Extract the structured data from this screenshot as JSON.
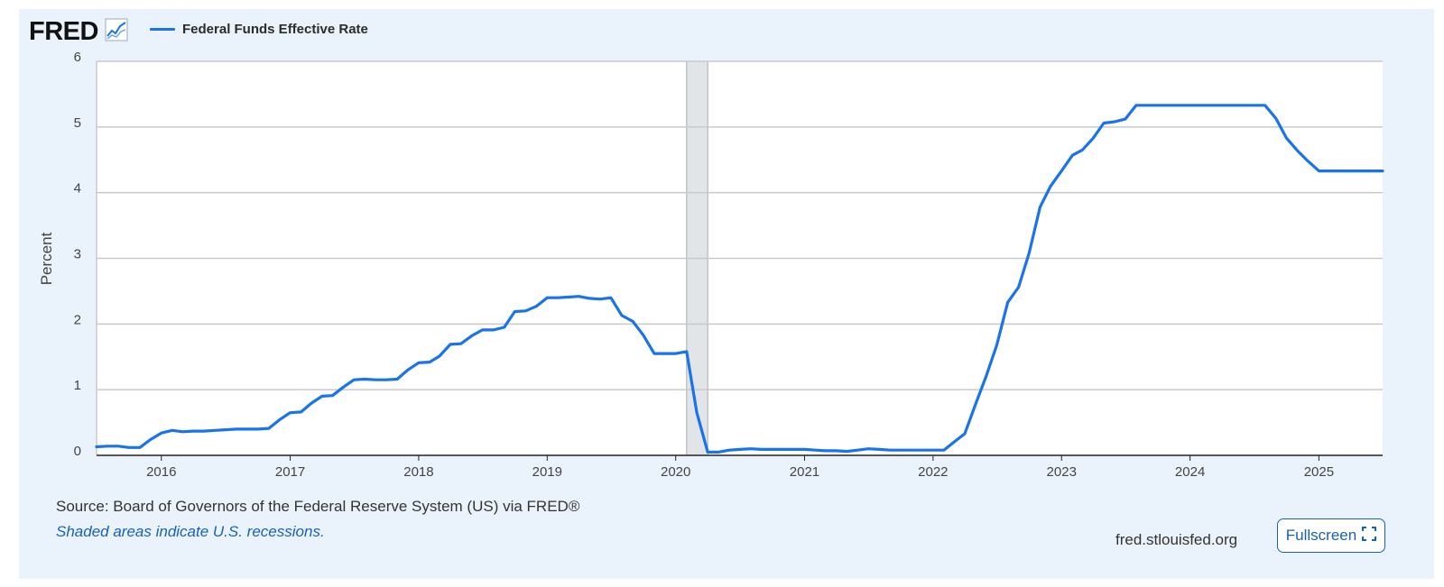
{
  "header": {
    "logo_text": "FRED",
    "logo_icon": "line-graph-icon",
    "legend_label": "Federal Funds Effective Rate",
    "legend_color": "#1a73e8"
  },
  "footer": {
    "source": "Source: Board of Governors of the Federal Reserve System (US) via FRED®",
    "recession_note": "Shaded areas indicate U.S. recessions.",
    "site": "fred.stlouisfed.org",
    "fullscreen_label": "Fullscreen",
    "fullscreen_icon": "expand-icon"
  },
  "chart_data": {
    "type": "line",
    "title": "",
    "xlabel": "",
    "ylabel": "Percent",
    "ylim": [
      0,
      6
    ],
    "xlim": [
      "2015-07-01",
      "2025-07-01"
    ],
    "yticks": [
      "0",
      "1",
      "2",
      "3",
      "4",
      "5",
      "6"
    ],
    "xticks": [
      {
        "date": "2016-01-01",
        "label": "2016"
      },
      {
        "date": "2017-01-01",
        "label": "2017"
      },
      {
        "date": "2018-01-01",
        "label": "2018"
      },
      {
        "date": "2019-01-01",
        "label": "2019"
      },
      {
        "date": "2020-01-01",
        "label": "2020"
      },
      {
        "date": "2021-01-01",
        "label": "2021"
      },
      {
        "date": "2022-01-01",
        "label": "2022"
      },
      {
        "date": "2023-01-01",
        "label": "2023"
      },
      {
        "date": "2024-01-01",
        "label": "2024"
      },
      {
        "date": "2025-01-01",
        "label": "2025"
      }
    ],
    "grid": true,
    "recessions": [
      {
        "start": "2020-02-01",
        "end": "2020-04-01"
      }
    ],
    "series": [
      {
        "name": "Federal Funds Effective Rate",
        "color": "#1a73e8",
        "x": [
          "2015-07-01",
          "2015-08-01",
          "2015-09-01",
          "2015-10-01",
          "2015-11-01",
          "2015-12-01",
          "2016-01-01",
          "2016-02-01",
          "2016-03-01",
          "2016-04-01",
          "2016-05-01",
          "2016-06-01",
          "2016-07-01",
          "2016-08-01",
          "2016-09-01",
          "2016-10-01",
          "2016-11-01",
          "2016-12-01",
          "2017-01-01",
          "2017-02-01",
          "2017-03-01",
          "2017-04-01",
          "2017-05-01",
          "2017-06-01",
          "2017-07-01",
          "2017-08-01",
          "2017-09-01",
          "2017-10-01",
          "2017-11-01",
          "2017-12-01",
          "2018-01-01",
          "2018-02-01",
          "2018-03-01",
          "2018-04-01",
          "2018-05-01",
          "2018-06-01",
          "2018-07-01",
          "2018-08-01",
          "2018-09-01",
          "2018-10-01",
          "2018-11-01",
          "2018-12-01",
          "2019-01-01",
          "2019-02-01",
          "2019-03-01",
          "2019-04-01",
          "2019-05-01",
          "2019-06-01",
          "2019-07-01",
          "2019-08-01",
          "2019-09-01",
          "2019-10-01",
          "2019-11-01",
          "2019-12-01",
          "2020-01-01",
          "2020-02-01",
          "2020-03-01",
          "2020-04-01",
          "2020-05-01",
          "2020-06-01",
          "2020-07-01",
          "2020-08-01",
          "2020-09-01",
          "2020-10-01",
          "2020-11-01",
          "2020-12-01",
          "2021-01-01",
          "2021-02-01",
          "2021-03-01",
          "2021-04-01",
          "2021-05-01",
          "2021-06-01",
          "2021-07-01",
          "2021-08-01",
          "2021-09-01",
          "2021-10-01",
          "2021-11-01",
          "2021-12-01",
          "2022-01-01",
          "2022-02-01",
          "2022-03-01",
          "2022-04-01",
          "2022-05-01",
          "2022-06-01",
          "2022-07-01",
          "2022-08-01",
          "2022-09-01",
          "2022-10-01",
          "2022-11-01",
          "2022-12-01",
          "2023-01-01",
          "2023-02-01",
          "2023-03-01",
          "2023-04-01",
          "2023-05-01",
          "2023-06-01",
          "2023-07-01",
          "2023-08-01",
          "2023-09-01",
          "2023-10-01",
          "2023-11-01",
          "2023-12-01",
          "2024-01-01",
          "2024-02-01",
          "2024-03-01",
          "2024-04-01",
          "2024-05-01",
          "2024-06-01",
          "2024-07-01",
          "2024-08-01",
          "2024-09-01",
          "2024-10-01",
          "2024-11-01",
          "2024-12-01",
          "2025-01-01",
          "2025-02-01",
          "2025-03-01",
          "2025-04-01",
          "2025-05-01",
          "2025-06-01",
          "2025-07-01"
        ],
        "y": [
          0.13,
          0.14,
          0.14,
          0.12,
          0.12,
          0.24,
          0.34,
          0.38,
          0.36,
          0.37,
          0.37,
          0.38,
          0.39,
          0.4,
          0.4,
          0.4,
          0.41,
          0.54,
          0.65,
          0.66,
          0.79,
          0.9,
          0.91,
          1.04,
          1.15,
          1.16,
          1.15,
          1.15,
          1.16,
          1.3,
          1.41,
          1.42,
          1.51,
          1.69,
          1.7,
          1.82,
          1.91,
          1.91,
          1.95,
          2.19,
          2.2,
          2.27,
          2.4,
          2.4,
          2.41,
          2.42,
          2.39,
          2.38,
          2.4,
          2.13,
          2.04,
          1.83,
          1.55,
          1.55,
          1.55,
          1.58,
          0.65,
          0.05,
          0.05,
          0.08,
          0.09,
          0.1,
          0.09,
          0.09,
          0.09,
          0.09,
          0.09,
          0.08,
          0.07,
          0.07,
          0.06,
          0.08,
          0.1,
          0.09,
          0.08,
          0.08,
          0.08,
          0.08,
          0.08,
          0.08,
          0.2,
          0.33,
          0.77,
          1.21,
          1.68,
          2.33,
          2.56,
          3.08,
          3.78,
          4.1,
          4.33,
          4.57,
          4.65,
          4.83,
          5.06,
          5.08,
          5.12,
          5.33,
          5.33,
          5.33,
          5.33,
          5.33,
          5.33,
          5.33,
          5.33,
          5.33,
          5.33,
          5.33,
          5.33,
          5.33,
          5.13,
          4.83,
          4.64,
          4.48,
          4.33,
          4.33,
          4.33,
          4.33,
          4.33,
          4.33,
          4.33
        ]
      }
    ]
  }
}
